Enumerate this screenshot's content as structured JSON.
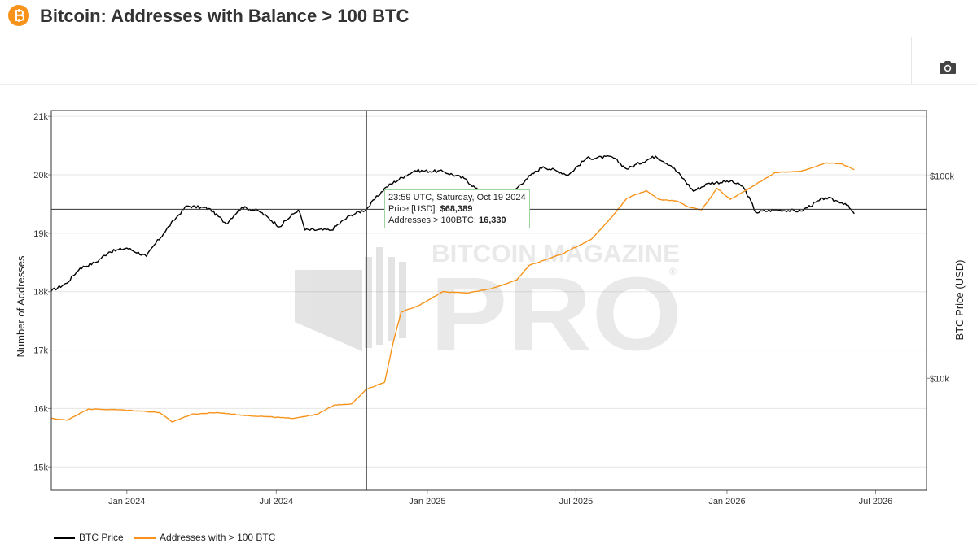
{
  "header": {
    "title": "Bitcoin: Addresses with Balance > 100 BTC",
    "logo_icon": "bitcoin-icon"
  },
  "toolbar": {
    "camera_icon": "camera-icon"
  },
  "colors": {
    "btc_price": "#000000",
    "addresses": "#f7931a",
    "logo": "#f7931a"
  },
  "watermark": {
    "line1": "BITCOIN MAGAZINE",
    "line2": "PRO",
    "registered": "®"
  },
  "chart_data": {
    "type": "line",
    "xlabel": "",
    "ylabel_left": "Number of Addresses",
    "ylabel_right": "BTC Price (USD)",
    "x_ticks": [
      "Jan 2024",
      "Jul 2024",
      "Jan 2025",
      "Jul 2025",
      "Jan 2026",
      "Jul 2026"
    ],
    "y_left_ticks": [
      "15k",
      "16k",
      "17k",
      "18k",
      "19k",
      "20k",
      "21k"
    ],
    "y_left_range": [
      14600,
      21100
    ],
    "y_right_ticks": [
      "$10k",
      "$100k"
    ],
    "y_right_scale": "log",
    "y_right_range": [
      2800,
      210000
    ],
    "x_range": [
      "2023-10-01",
      "2026-09-01"
    ],
    "grid": true,
    "legend_position": "bottom-left",
    "series": [
      {
        "name": "BTC Price",
        "axis": "right",
        "color": "#000000",
        "points": [
          [
            "2023-10-01",
            27000
          ],
          [
            "2023-10-20",
            29500
          ],
          [
            "2023-11-05",
            35000
          ],
          [
            "2023-11-25",
            37500
          ],
          [
            "2023-12-10",
            42000
          ],
          [
            "2024-01-01",
            44000
          ],
          [
            "2024-01-25",
            40000
          ],
          [
            "2024-02-15",
            52000
          ],
          [
            "2024-03-01",
            62000
          ],
          [
            "2024-03-14",
            71000
          ],
          [
            "2024-04-10",
            69000
          ],
          [
            "2024-05-01",
            58000
          ],
          [
            "2024-05-20",
            70000
          ],
          [
            "2024-06-10",
            67000
          ],
          [
            "2024-07-05",
            56000
          ],
          [
            "2024-07-28",
            68000
          ],
          [
            "2024-08-05",
            54000
          ],
          [
            "2024-09-06",
            54000
          ],
          [
            "2024-09-30",
            64000
          ],
          [
            "2024-10-19",
            68389
          ],
          [
            "2024-11-12",
            88000
          ],
          [
            "2024-12-05",
            100000
          ],
          [
            "2024-12-17",
            106000
          ],
          [
            "2025-01-20",
            105000
          ],
          [
            "2025-02-15",
            97000
          ],
          [
            "2025-03-10",
            80000
          ],
          [
            "2025-04-08",
            77000
          ],
          [
            "2025-05-01",
            96000
          ],
          [
            "2025-05-22",
            111000
          ],
          [
            "2025-06-22",
            101000
          ],
          [
            "2025-07-14",
            122000
          ],
          [
            "2025-08-14",
            124000
          ],
          [
            "2025-09-01",
            108000
          ],
          [
            "2025-10-06",
            125000
          ],
          [
            "2025-10-25",
            112000
          ],
          [
            "2025-11-21",
            84000
          ],
          [
            "2025-12-10",
            92000
          ],
          [
            "2026-01-05",
            94000
          ],
          [
            "2026-01-20",
            89000
          ],
          [
            "2026-02-05",
            66000
          ],
          [
            "2026-03-01",
            68000
          ],
          [
            "2026-04-01",
            67000
          ],
          [
            "2026-05-01",
            78000
          ],
          [
            "2026-05-25",
            73000
          ],
          [
            "2026-06-05",
            65000
          ]
        ]
      },
      {
        "name": "Addresses with > 100 BTC",
        "axis": "left",
        "color": "#f7931a",
        "points": [
          [
            "2023-10-01",
            15830
          ],
          [
            "2023-10-20",
            15800
          ],
          [
            "2023-11-15",
            15990
          ],
          [
            "2023-12-20",
            15980
          ],
          [
            "2024-01-15",
            15960
          ],
          [
            "2024-02-10",
            15930
          ],
          [
            "2024-02-25",
            15770
          ],
          [
            "2024-03-20",
            15900
          ],
          [
            "2024-04-20",
            15930
          ],
          [
            "2024-05-25",
            15880
          ],
          [
            "2024-06-20",
            15860
          ],
          [
            "2024-07-20",
            15830
          ],
          [
            "2024-08-20",
            15900
          ],
          [
            "2024-09-10",
            16060
          ],
          [
            "2024-10-01",
            16080
          ],
          [
            "2024-10-19",
            16330
          ],
          [
            "2024-11-10",
            16450
          ],
          [
            "2024-11-20",
            17100
          ],
          [
            "2024-11-30",
            17650
          ],
          [
            "2024-12-20",
            17750
          ],
          [
            "2025-01-20",
            18000
          ],
          [
            "2025-02-20",
            17980
          ],
          [
            "2025-03-20",
            18050
          ],
          [
            "2025-04-20",
            18200
          ],
          [
            "2025-05-05",
            18450
          ],
          [
            "2025-06-15",
            18650
          ],
          [
            "2025-07-20",
            18900
          ],
          [
            "2025-08-15",
            19300
          ],
          [
            "2025-09-01",
            19600
          ],
          [
            "2025-09-25",
            19730
          ],
          [
            "2025-10-10",
            19580
          ],
          [
            "2025-11-01",
            19550
          ],
          [
            "2025-11-15",
            19450
          ],
          [
            "2025-12-01",
            19400
          ],
          [
            "2025-12-20",
            19770
          ],
          [
            "2026-01-05",
            19580
          ],
          [
            "2026-01-20",
            19700
          ],
          [
            "2026-02-10",
            19880
          ],
          [
            "2026-03-01",
            20040
          ],
          [
            "2026-04-01",
            20060
          ],
          [
            "2026-05-01",
            20200
          ],
          [
            "2026-05-20",
            20190
          ],
          [
            "2026-06-05",
            20090
          ]
        ]
      }
    ],
    "crosshair": {
      "date": "2024-10-19",
      "price": 68389,
      "addresses": 16330
    },
    "tooltip": {
      "line1": "23:59 UTC, Saturday, Oct 19 2024",
      "price_label": "Price [USD]:",
      "price_value": "$68,389",
      "addr_label": "Addresses > 100BTC:",
      "addr_value": "16,330"
    }
  }
}
